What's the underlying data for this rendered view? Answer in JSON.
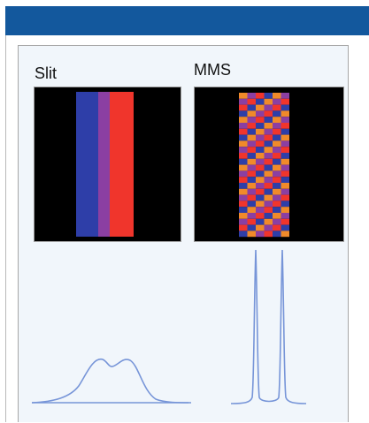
{
  "left_label": "Slit",
  "right_label": "MMS",
  "colors": {
    "header": "#13589d",
    "frame_bg": "#f1f6fb",
    "panel_bg": "#000000",
    "blue_stripe": "#2e3ea8",
    "purple_stripe": "#8b3fa2",
    "red_stripe": "#f0352c",
    "orange_block": "#f08a2a",
    "curve": "#7795d8"
  },
  "mms_pattern": {
    "rows": 24,
    "columns": 6
  }
}
